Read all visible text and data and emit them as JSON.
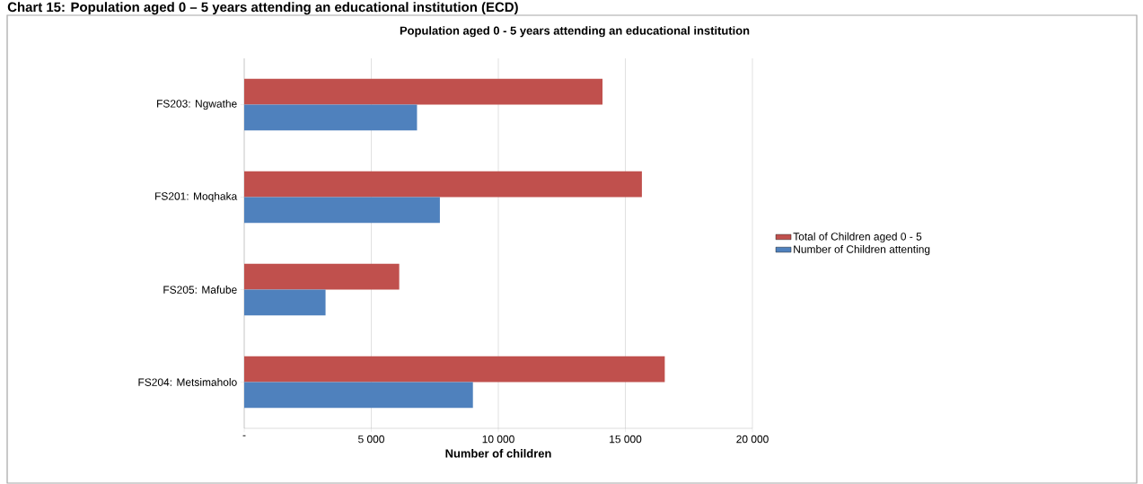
{
  "chart_data": {
    "type": "bar",
    "orientation": "horizontal",
    "title": "Population aged 0 - 5 years attending an educational institution",
    "xlabel": "Number of children",
    "annotations": [
      "Chart 15: Population aged 0 – 5 years attending an educational institution (ECD)"
    ],
    "categories": [
      "FS203: Ngwathe",
      "FS201: Moqhaka",
      "FS205: Mafube",
      "FS204: Metsimaholo"
    ],
    "series": [
      {
        "name": "Total of Children aged 0 - 5",
        "color": "#c0504d",
        "values": [
          14100,
          15650,
          6100,
          16550
        ]
      },
      {
        "name": "Number of Children attenting",
        "color": "#4f81bd",
        "values": [
          6800,
          7700,
          3200,
          9000
        ]
      }
    ],
    "xlim": [
      0,
      20000
    ],
    "xticks": [
      {
        "value": 0,
        "label": "-"
      },
      {
        "value": 5000,
        "label": "5 000"
      },
      {
        "value": 10000,
        "label": "10 000"
      },
      {
        "value": 15000,
        "label": "15 000"
      },
      {
        "value": 20000,
        "label": "20 000"
      }
    ],
    "grid": "x",
    "legend": "right"
  }
}
